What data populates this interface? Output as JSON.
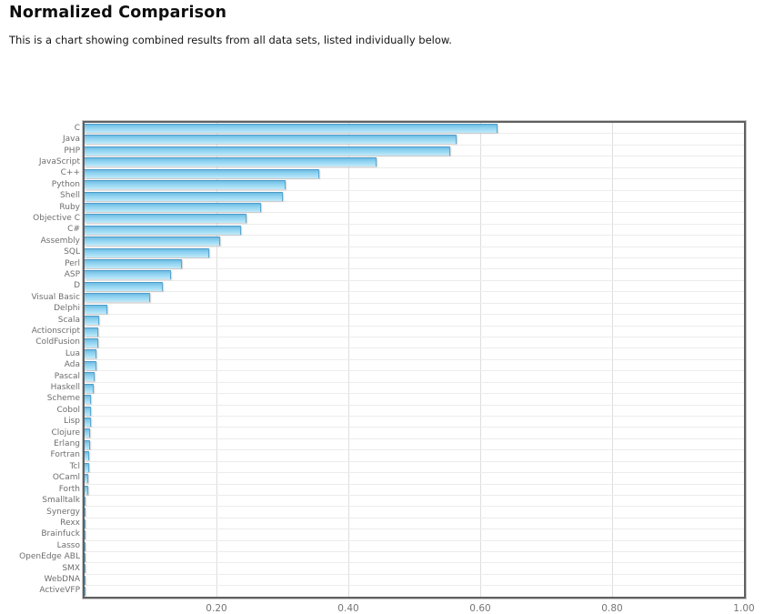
{
  "page": {
    "title": "Normalized Comparison",
    "subtitle": "This is a chart showing combined results from all data sets, listed individually below."
  },
  "colors": {
    "bar_fill_light": "#8cd1ef",
    "bar_fill_dark": "#4e9cca",
    "bar_border": "#5aa7d2",
    "plot_border": "#606060",
    "gridline": "#dedede",
    "row_gridline": "#ececec",
    "label_text": "#6e6e6e",
    "tick_text": "#757575",
    "title_text": "#0d0d0d"
  },
  "chart_data": {
    "type": "bar",
    "orientation": "horizontal",
    "title": "Normalized Comparison",
    "subtitle": "This is a chart showing combined results from all data sets, listed individually below.",
    "xlabel": "",
    "ylabel": "",
    "xlim": [
      0,
      1.0
    ],
    "grid": true,
    "legend": "none",
    "x_ticks": [
      {
        "label": "0.20",
        "value": 0.2
      },
      {
        "label": "0.40",
        "value": 0.4
      },
      {
        "label": "0.60",
        "value": 0.6
      },
      {
        "label": "0.80",
        "value": 0.8
      },
      {
        "label": "1.00",
        "value": 1.0
      }
    ],
    "categories": [
      "C",
      "Java",
      "PHP",
      "JavaScript",
      "C++",
      "Python",
      "Shell",
      "Ruby",
      "Objective C",
      "C#",
      "Assembly",
      "SQL",
      "Perl",
      "ASP",
      "D",
      "Visual Basic",
      "Delphi",
      "Scala",
      "Actionscript",
      "ColdFusion",
      "Lua",
      "Ada",
      "Pascal",
      "Haskell",
      "Scheme",
      "Cobol",
      "Lisp",
      "Clojure",
      "Erlang",
      "Fortran",
      "Tcl",
      "OCaml",
      "Forth",
      "Smalltalk",
      "Synergy",
      "Rexx",
      "Brainfuck",
      "Lasso",
      "OpenEdge ABL",
      "SMX",
      "WebDNA",
      "ActiveVFP"
    ],
    "values": [
      0.626,
      0.564,
      0.554,
      0.443,
      0.356,
      0.305,
      0.301,
      0.267,
      0.245,
      0.237,
      0.205,
      0.189,
      0.148,
      0.131,
      0.118,
      0.099,
      0.035,
      0.022,
      0.021,
      0.02,
      0.018,
      0.018,
      0.015,
      0.014,
      0.01,
      0.01,
      0.009,
      0.008,
      0.008,
      0.007,
      0.007,
      0.006,
      0.005,
      0.002,
      0.0015,
      0.001,
      0.001,
      0.0008,
      0.0005,
      0.0004,
      0.0003,
      0.0002
    ]
  }
}
